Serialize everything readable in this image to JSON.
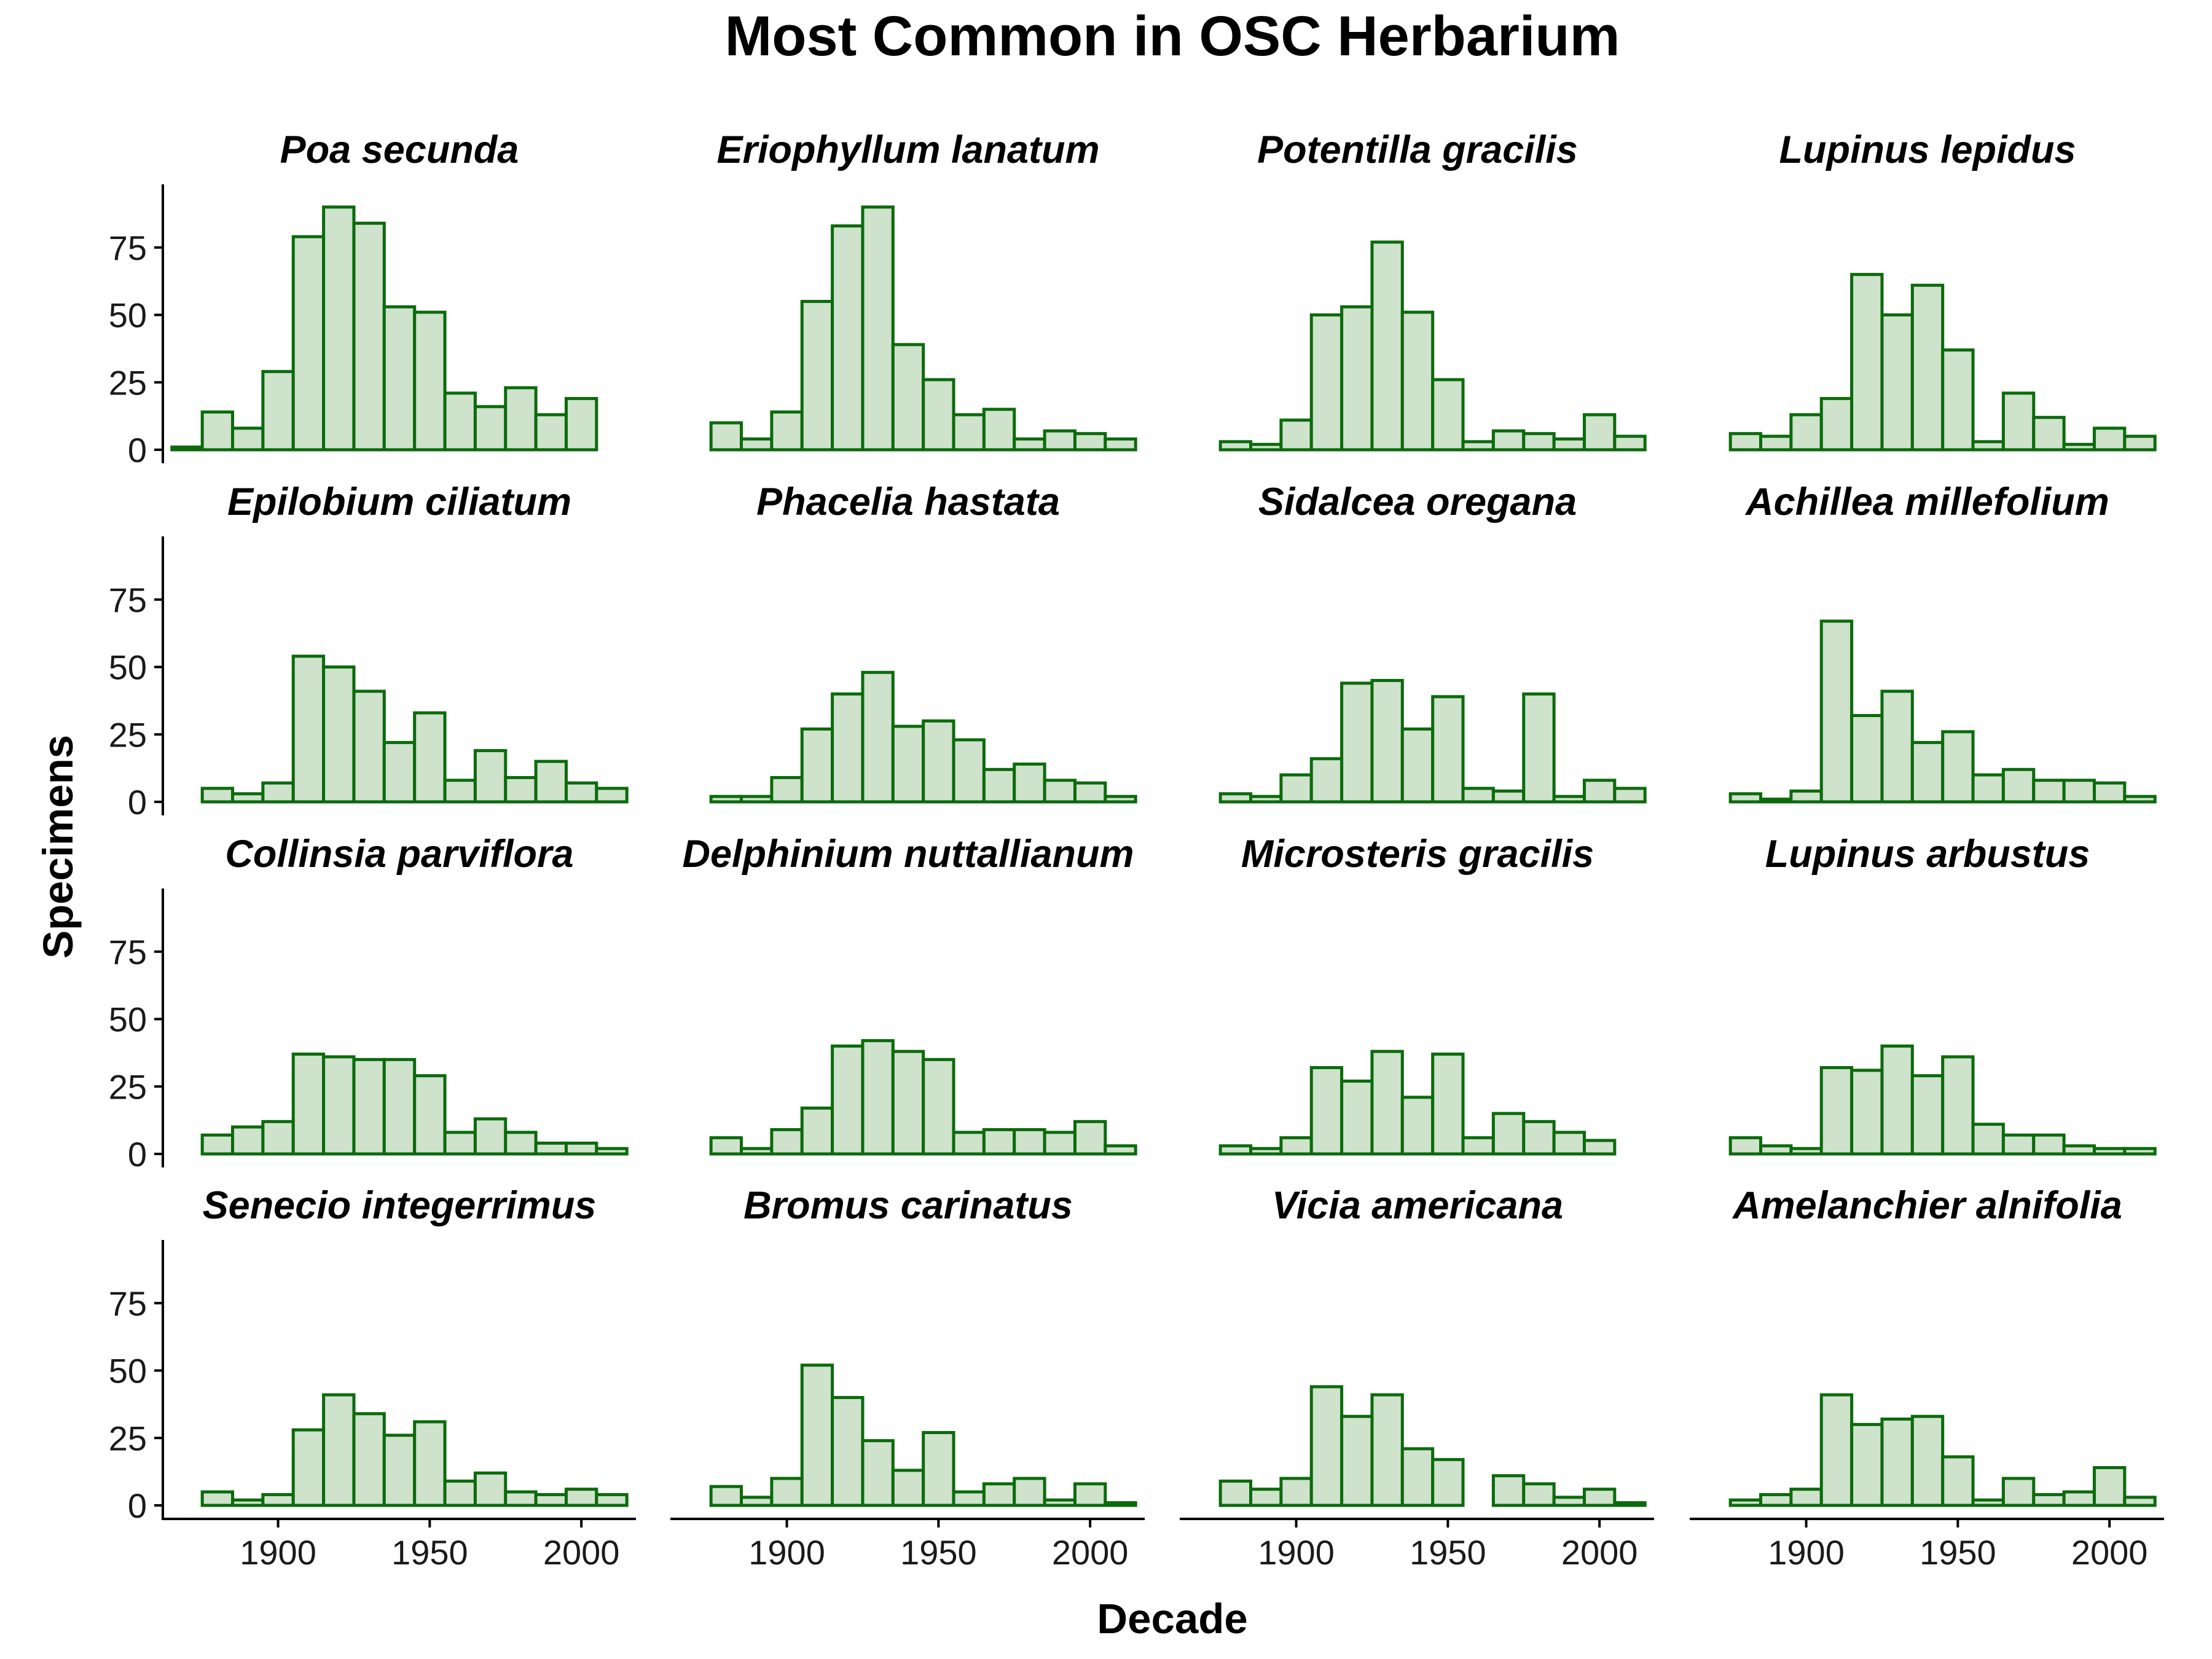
{
  "chart_data": {
    "type": "bar",
    "title": "Most Common in OSC Herbarium",
    "xlabel": "Decade",
    "ylabel": "Specimens",
    "ylim": [
      0,
      95
    ],
    "xlim": [
      1862,
      2018
    ],
    "yticks": [
      0,
      25,
      50,
      75
    ],
    "xticks": [
      1900,
      1950,
      2000
    ],
    "grid": false,
    "legend": "none",
    "colors": {
      "fill": "#cfe2cc",
      "outline": "#0b6b0b"
    },
    "facets": [
      {
        "name": "Poa secunda",
        "x": [
          1870,
          1880,
          1890,
          1900,
          1910,
          1920,
          1930,
          1940,
          1950,
          1960,
          1970,
          1980,
          1990,
          2000
        ],
        "values": [
          1,
          14,
          8,
          29,
          79,
          90,
          84,
          53,
          51,
          21,
          16,
          23,
          13,
          19
        ]
      },
      {
        "name": "Eriophyllum lanatum",
        "x": [
          1880,
          1890,
          1900,
          1910,
          1920,
          1930,
          1940,
          1950,
          1960,
          1970,
          1980,
          1990,
          2000,
          2010
        ],
        "values": [
          10,
          4,
          14,
          55,
          83,
          90,
          39,
          26,
          13,
          15,
          4,
          7,
          6,
          4
        ]
      },
      {
        "name": "Potentilla gracilis",
        "x": [
          1880,
          1890,
          1900,
          1910,
          1920,
          1930,
          1940,
          1950,
          1960,
          1970,
          1980,
          1990,
          2000,
          2010
        ],
        "values": [
          3,
          2,
          11,
          50,
          53,
          77,
          51,
          26,
          3,
          7,
          6,
          4,
          13,
          5
        ]
      },
      {
        "name": "Lupinus lepidus",
        "x": [
          1880,
          1890,
          1900,
          1910,
          1920,
          1930,
          1940,
          1950,
          1960,
          1970,
          1980,
          1990,
          2000,
          2010
        ],
        "values": [
          6,
          5,
          13,
          19,
          65,
          50,
          61,
          37,
          3,
          21,
          12,
          2,
          8,
          5
        ]
      },
      {
        "name": "Epilobium ciliatum",
        "x": [
          1880,
          1890,
          1900,
          1910,
          1920,
          1930,
          1940,
          1950,
          1960,
          1970,
          1980,
          1990,
          2000,
          2010
        ],
        "values": [
          5,
          3,
          7,
          54,
          50,
          41,
          22,
          33,
          8,
          19,
          9,
          15,
          7,
          5
        ]
      },
      {
        "name": "Phacelia hastata",
        "x": [
          1880,
          1890,
          1900,
          1910,
          1920,
          1930,
          1940,
          1950,
          1960,
          1970,
          1980,
          1990,
          2000,
          2010
        ],
        "values": [
          2,
          2,
          9,
          27,
          40,
          48,
          28,
          30,
          23,
          12,
          14,
          8,
          7,
          2
        ]
      },
      {
        "name": "Sidalcea oregana",
        "x": [
          1880,
          1890,
          1900,
          1910,
          1920,
          1930,
          1940,
          1950,
          1960,
          1970,
          1980,
          1990,
          2000,
          2010
        ],
        "values": [
          3,
          2,
          10,
          16,
          44,
          45,
          27,
          39,
          5,
          4,
          40,
          2,
          8,
          5
        ]
      },
      {
        "name": "Achillea millefolium",
        "x": [
          1880,
          1890,
          1900,
          1910,
          1920,
          1930,
          1940,
          1950,
          1960,
          1970,
          1980,
          1990,
          2000,
          2010
        ],
        "values": [
          3,
          1,
          4,
          67,
          32,
          41,
          22,
          26,
          10,
          12,
          8,
          8,
          7,
          2
        ]
      },
      {
        "name": "Collinsia parviflora",
        "x": [
          1880,
          1890,
          1900,
          1910,
          1920,
          1930,
          1940,
          1950,
          1960,
          1970,
          1980,
          1990,
          2000,
          2010
        ],
        "values": [
          7,
          10,
          12,
          37,
          36,
          35,
          35,
          29,
          8,
          13,
          8,
          4,
          4,
          2
        ]
      },
      {
        "name": "Delphinium nuttallianum",
        "x": [
          1880,
          1890,
          1900,
          1910,
          1920,
          1930,
          1940,
          1950,
          1960,
          1970,
          1980,
          1990,
          2000,
          2010
        ],
        "values": [
          6,
          2,
          9,
          17,
          40,
          42,
          38,
          35,
          8,
          9,
          9,
          8,
          12,
          3
        ]
      },
      {
        "name": "Microsteris gracilis",
        "x": [
          1880,
          1890,
          1900,
          1910,
          1920,
          1930,
          1940,
          1950,
          1960,
          1970,
          1980,
          1990,
          2000
        ],
        "values": [
          3,
          2,
          6,
          32,
          27,
          38,
          21,
          37,
          6,
          15,
          12,
          8,
          5
        ]
      },
      {
        "name": "Lupinus arbustus",
        "x": [
          1880,
          1890,
          1900,
          1910,
          1920,
          1930,
          1940,
          1950,
          1960,
          1970,
          1980,
          1990,
          2000,
          2010
        ],
        "values": [
          6,
          3,
          2,
          32,
          31,
          40,
          29,
          36,
          11,
          7,
          7,
          3,
          2,
          2
        ]
      },
      {
        "name": "Senecio integerrimus",
        "x": [
          1880,
          1890,
          1900,
          1910,
          1920,
          1930,
          1940,
          1950,
          1960,
          1970,
          1980,
          1990,
          2000,
          2010
        ],
        "values": [
          5,
          2,
          4,
          28,
          41,
          34,
          26,
          31,
          9,
          12,
          5,
          4,
          6,
          4
        ]
      },
      {
        "name": "Bromus carinatus",
        "x": [
          1880,
          1890,
          1900,
          1910,
          1920,
          1930,
          1940,
          1950,
          1960,
          1970,
          1980,
          1990,
          2000,
          2010
        ],
        "values": [
          7,
          3,
          10,
          52,
          40,
          24,
          13,
          27,
          5,
          8,
          10,
          2,
          8,
          1
        ]
      },
      {
        "name": "Vicia americana",
        "x": [
          1880,
          1890,
          1900,
          1910,
          1920,
          1930,
          1940,
          1950,
          1970,
          1980,
          1990,
          2000,
          2010
        ],
        "values": [
          9,
          6,
          10,
          44,
          33,
          41,
          21,
          17,
          11,
          8,
          3,
          6,
          1
        ]
      },
      {
        "name": "Amelanchier alnifolia",
        "x": [
          1880,
          1890,
          1900,
          1910,
          1920,
          1930,
          1940,
          1950,
          1960,
          1970,
          1980,
          1990,
          2000,
          2010
        ],
        "values": [
          2,
          4,
          6,
          41,
          30,
          32,
          33,
          18,
          2,
          10,
          4,
          5,
          14,
          3
        ]
      }
    ]
  }
}
